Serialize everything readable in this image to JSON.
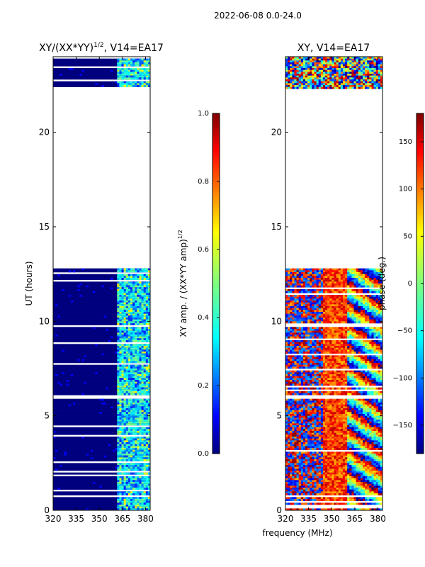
{
  "figure": {
    "title": "2022-06-08 0.0-24.0"
  },
  "chart_data": [
    {
      "type": "heatmap",
      "title": "XY/(XX*YY)",
      "title_sup": "1/2",
      "title_suffix": ", V14=EA17",
      "ylabel": "UT (hours)",
      "xlabel": "",
      "xticks": [
        320,
        335,
        350,
        365,
        380
      ],
      "xlim": [
        320,
        383
      ],
      "yticks": [
        0,
        5,
        10,
        15,
        20
      ],
      "ylim": [
        0,
        24
      ],
      "data_gaps_hours": [
        [
          12.8,
          22.3
        ]
      ],
      "colorbar": {
        "label": "XY amp. / (XX*YY amp)",
        "label_sup": "1/2",
        "ticks": [
          0.0,
          0.2,
          0.4,
          0.6,
          0.8,
          1.0
        ],
        "tick_labels": [
          "0.0",
          "0.2",
          "0.4",
          "0.6",
          "0.8",
          "1.0"
        ],
        "range": [
          0.0,
          1.0
        ]
      }
    },
    {
      "type": "heatmap",
      "title": "XY, V14=EA17",
      "ylabel": "",
      "xlabel": "frequency (MHz)",
      "xticks": [
        320,
        335,
        350,
        365,
        380
      ],
      "xlim": [
        320,
        383
      ],
      "yticks": [
        0,
        5,
        10,
        15,
        20
      ],
      "ylim": [
        0,
        24
      ],
      "data_gaps_hours": [
        [
          12.8,
          22.3
        ]
      ],
      "colorbar": {
        "label": "phase (deg.)",
        "ticks": [
          150,
          100,
          50,
          0,
          -50,
          -100,
          -150
        ],
        "tick_labels": [
          "150",
          "100",
          "50",
          "0",
          "−50",
          "−100",
          "−150"
        ],
        "range": [
          -180,
          180
        ]
      }
    }
  ],
  "colors": {
    "jet": [
      "#00007f",
      "#0000ff",
      "#007fff",
      "#00ffff",
      "#7fff7f",
      "#ffff00",
      "#ff7f00",
      "#ff0000",
      "#7f0000"
    ]
  }
}
